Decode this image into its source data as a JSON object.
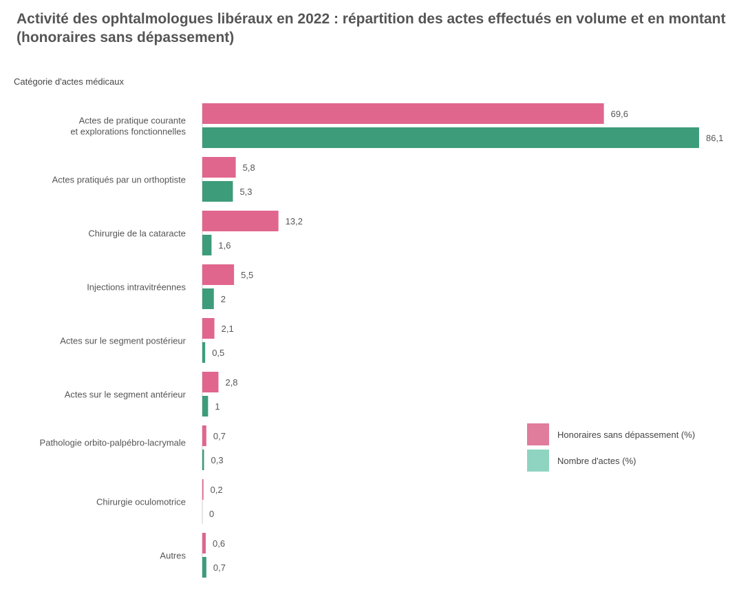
{
  "chart_data": {
    "type": "bar",
    "orientation": "horizontal",
    "title": "Activité des ophtalmologues libéraux en 2022 : répartition des actes effectués en volume et en montant (honoraires sans dépassement)",
    "ylabel": "Catégorie d'actes médicaux",
    "categories": [
      "Actes de pratique courante et explorations fonctionnelles",
      "Actes pratiqués par un orthoptiste",
      "Chirurgie de la cataracte",
      "Injections intravitréennes",
      "Actes sur le segment postérieur",
      "Actes sur le segment antérieur",
      "Pathologie orbito-palpébro-lacrymale",
      "Chirurgie oculomotrice",
      "Autres"
    ],
    "series": [
      {
        "name": "Honoraires sans dépassement (%)",
        "color": "#e0668e",
        "values": [
          69.6,
          5.8,
          13.2,
          5.5,
          2.1,
          2.8,
          0.7,
          0.2,
          0.6
        ],
        "labels": [
          "69,6",
          "5,8",
          "13,2",
          "5,5",
          "2,1",
          "2,8",
          "0,7",
          "0,2",
          "0,6"
        ]
      },
      {
        "name": "Nombre d'actes (%)",
        "color": "#3d9c7a",
        "values": [
          86.1,
          5.3,
          1.6,
          2,
          0.5,
          1,
          0.3,
          0,
          0.7
        ],
        "labels": [
          "86,1",
          "5,3",
          "1,6",
          "2",
          "0,5",
          "1",
          "0,3",
          "0",
          "0,7"
        ]
      }
    ],
    "xlim": [
      0,
      86.1
    ],
    "grid": false,
    "legend_position": "right"
  },
  "legend_colors": [
    "#e07c9c",
    "#8fd4c0"
  ]
}
